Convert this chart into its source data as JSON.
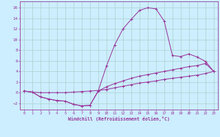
{
  "xlabel": "Windchill (Refroidissement éolien,°C)",
  "background_color": "#cceeff",
  "grid_color": "#b0d4d4",
  "line_color": "#993399",
  "x_ticks": [
    0,
    1,
    2,
    3,
    4,
    5,
    6,
    7,
    8,
    9,
    10,
    11,
    12,
    13,
    14,
    15,
    16,
    17,
    18,
    19,
    20,
    21,
    22,
    23
  ],
  "y_ticks": [
    -2,
    0,
    2,
    4,
    6,
    8,
    10,
    12,
    14,
    16
  ],
  "xlim": [
    -0.5,
    23.5
  ],
  "ylim": [
    -3.2,
    17.2
  ],
  "curve1_x": [
    0,
    1,
    2,
    3,
    4,
    5,
    6,
    7,
    8,
    9,
    10,
    11,
    12,
    13,
    14,
    15,
    16,
    17,
    18,
    19,
    20,
    21,
    22,
    23
  ],
  "curve1_y": [
    0.3,
    0.1,
    -0.8,
    -1.2,
    -1.5,
    -1.6,
    -2.2,
    -2.5,
    -2.4,
    0.3,
    5.0,
    9.0,
    12.0,
    13.8,
    15.5,
    16.0,
    15.8,
    13.5,
    7.0,
    6.8,
    7.3,
    6.7,
    5.9,
    4.0
  ],
  "curve2_x": [
    0,
    1,
    2,
    3,
    4,
    5,
    6,
    7,
    8,
    9,
    10,
    11,
    12,
    13,
    14,
    15,
    16,
    17,
    18,
    19,
    20,
    21,
    22,
    23
  ],
  "curve2_y": [
    0.3,
    0.1,
    -0.8,
    -1.2,
    -1.5,
    -1.6,
    -2.2,
    -2.5,
    -2.4,
    0.3,
    1.1,
    1.7,
    2.2,
    2.7,
    3.1,
    3.4,
    3.7,
    4.0,
    4.3,
    4.6,
    4.9,
    5.1,
    5.5,
    4.0
  ],
  "curve3_x": [
    0,
    1,
    2,
    3,
    4,
    5,
    6,
    7,
    8,
    9,
    10,
    11,
    12,
    13,
    14,
    15,
    16,
    17,
    18,
    19,
    20,
    21,
    22,
    23
  ],
  "curve3_y": [
    0.3,
    0.1,
    0.0,
    0.0,
    0.0,
    0.0,
    0.1,
    0.2,
    0.3,
    0.4,
    0.6,
    0.9,
    1.2,
    1.5,
    1.8,
    2.0,
    2.2,
    2.5,
    2.7,
    2.9,
    3.1,
    3.3,
    3.6,
    4.0
  ]
}
